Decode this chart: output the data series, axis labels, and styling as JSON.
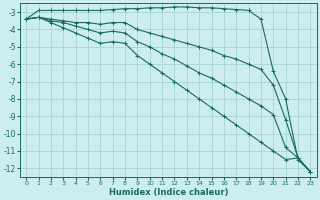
{
  "background_color": "#cceef0",
  "grid_color": "#aad4d8",
  "line_color": "#1a6b5a",
  "xlabel": "Humidex (Indice chaleur)",
  "xlim": [
    -0.5,
    23.5
  ],
  "ylim": [
    -12.5,
    -2.5
  ],
  "yticks": [
    -12,
    -11,
    -10,
    -9,
    -8,
    -7,
    -6,
    -5,
    -4,
    -3
  ],
  "xticks": [
    0,
    1,
    2,
    3,
    4,
    5,
    6,
    7,
    8,
    9,
    10,
    11,
    12,
    13,
    14,
    15,
    16,
    17,
    18,
    19,
    20,
    21,
    22,
    23
  ],
  "lines": [
    {
      "x": [
        0,
        1,
        2,
        3,
        4,
        5,
        6,
        7,
        8,
        9,
        10,
        11,
        12,
        13,
        14,
        15,
        16,
        17,
        18,
        19,
        20,
        21,
        22,
        23
      ],
      "y": [
        -3.4,
        -2.9,
        -2.9,
        -2.9,
        -2.9,
        -2.9,
        -2.9,
        -2.85,
        -2.8,
        -2.8,
        -2.75,
        -2.75,
        -2.7,
        -2.7,
        -2.75,
        -2.75,
        -2.8,
        -2.85,
        -2.9,
        -3.4,
        -6.4,
        -8.0,
        -11.5,
        -12.2
      ],
      "marker": "+"
    },
    {
      "x": [
        0,
        1,
        2,
        3,
        4,
        5,
        6,
        7,
        8,
        9,
        10,
        11,
        12,
        13,
        14,
        15,
        16,
        17,
        18,
        19,
        20,
        21,
        22,
        23
      ],
      "y": [
        -3.4,
        -3.3,
        -3.4,
        -3.5,
        -3.6,
        -3.6,
        -3.7,
        -3.6,
        -3.6,
        -4.0,
        -4.2,
        -4.4,
        -4.6,
        -4.8,
        -5.0,
        -5.2,
        -5.5,
        -5.7,
        -6.0,
        -6.3,
        -7.2,
        -9.2,
        -11.4,
        -12.2
      ],
      "marker": "+"
    },
    {
      "x": [
        0,
        1,
        2,
        3,
        4,
        5,
        6,
        7,
        8,
        9,
        10,
        11,
        12,
        13,
        14,
        15,
        16,
        17,
        18,
        19,
        20,
        21,
        22,
        23
      ],
      "y": [
        -3.4,
        -3.3,
        -3.5,
        -3.6,
        -3.8,
        -4.0,
        -4.2,
        -4.1,
        -4.2,
        -4.7,
        -5.0,
        -5.4,
        -5.7,
        -6.1,
        -6.5,
        -6.8,
        -7.2,
        -7.6,
        -8.0,
        -8.4,
        -8.9,
        -10.8,
        -11.4,
        -12.2
      ],
      "marker": "+"
    },
    {
      "x": [
        0,
        1,
        2,
        3,
        4,
        5,
        6,
        7,
        8,
        9,
        10,
        11,
        12,
        13,
        14,
        15,
        16,
        17,
        18,
        19,
        20,
        21,
        22,
        23
      ],
      "y": [
        -3.4,
        -3.3,
        -3.6,
        -3.9,
        -4.2,
        -4.5,
        -4.8,
        -4.7,
        -4.8,
        -5.5,
        -6.0,
        -6.5,
        -7.0,
        -7.5,
        -8.0,
        -8.5,
        -9.0,
        -9.5,
        -10.0,
        -10.5,
        -11.0,
        -11.5,
        -11.4,
        -12.2
      ],
      "marker": "+"
    }
  ]
}
